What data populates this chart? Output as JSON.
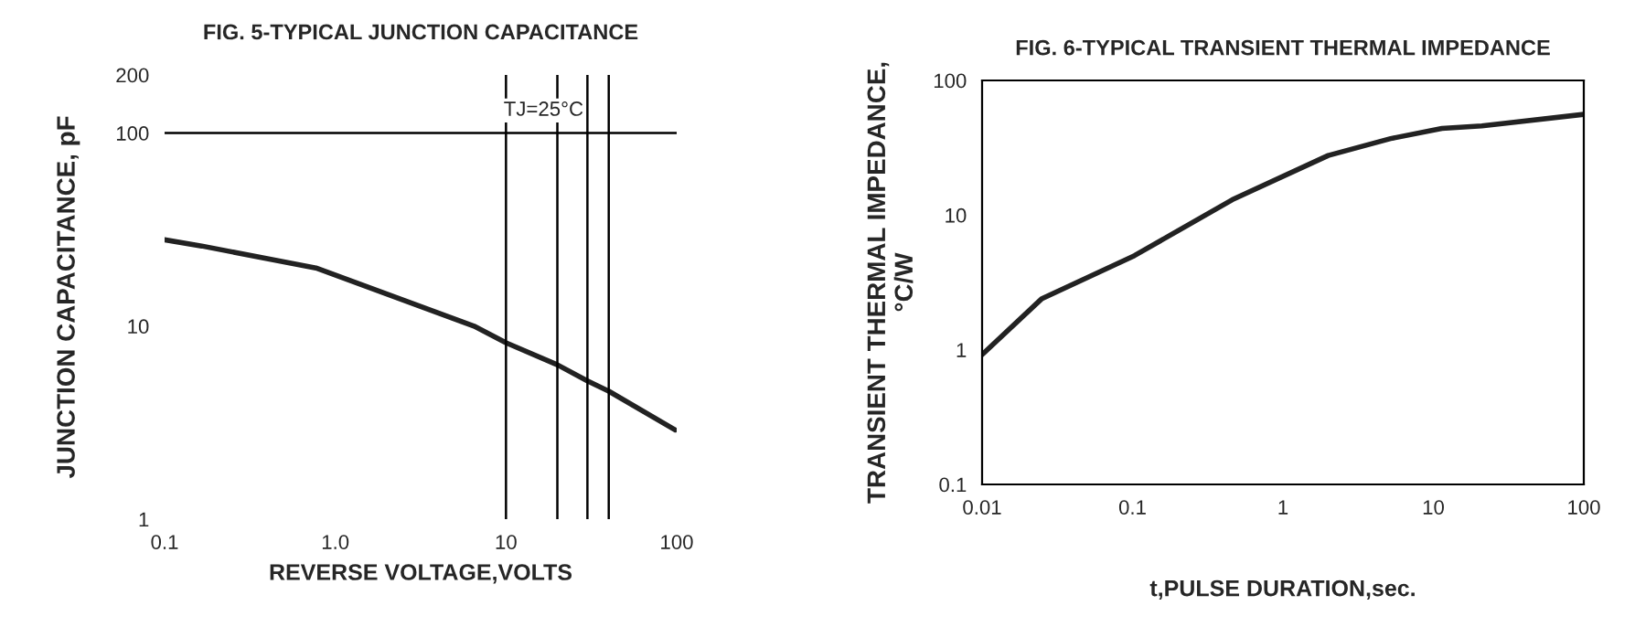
{
  "chart_data": [
    {
      "type": "line",
      "title": "FIG. 5-TYPICAL JUNCTION CAPACITANCE",
      "xlabel": "REVERSE VOLTAGE,VOLTS",
      "ylabel": "JUNCTION CAPACITANCE, pF",
      "log": "xy",
      "xlim": [
        0.1,
        100
      ],
      "ylim": [
        1,
        200
      ],
      "xticks": [
        0.1,
        {
          "value": 1,
          "label": "1.0"
        },
        10,
        100
      ],
      "yticks": [
        1,
        10,
        100,
        200
      ],
      "series": [
        {
          "color": "#222222",
          "x": [
            0.1,
            0.165,
            0.77,
            6.5,
            10,
            20,
            30,
            40,
            98
          ],
          "values": [
            28,
            26,
            20,
            10,
            8.2,
            6.3,
            5.2,
            4.6,
            2.9
          ]
        }
      ],
      "ref_lines": [
        {
          "axis": "y",
          "value": 100,
          "color": "#000000"
        },
        {
          "axis": "x",
          "value": 10,
          "color": "#000000"
        },
        {
          "axis": "x",
          "value": 20,
          "color": "#000000"
        },
        {
          "axis": "x",
          "value": 30,
          "color": "#000000"
        },
        {
          "axis": "x",
          "value": 40,
          "color": "#000000"
        }
      ],
      "annotations": [
        "TJ=25°C"
      ]
    },
    {
      "type": "line",
      "title": "FIG. 6-TYPICAL TRANSIENT THERMAL IMPEDANCE",
      "xlabel": "t,PULSE DURATION,sec.",
      "ylabel": "TRANSIENT THERMAL IMPEDANCE,\n°C/W",
      "log": "xy",
      "xlim": [
        0.01,
        100
      ],
      "ylim": [
        0.1,
        100
      ],
      "xticks": [
        0.01,
        0.1,
        1,
        10,
        100
      ],
      "yticks": [
        0.1,
        1,
        10,
        100
      ],
      "series": [
        {
          "color": "#222222",
          "x": [
            0.01,
            0.025,
            0.103,
            0.46,
            2.0,
            5.2,
            11.4,
            21,
            100
          ],
          "values": [
            0.92,
            2.4,
            5.0,
            13,
            27.7,
            37,
            44,
            46,
            56
          ]
        }
      ]
    }
  ]
}
